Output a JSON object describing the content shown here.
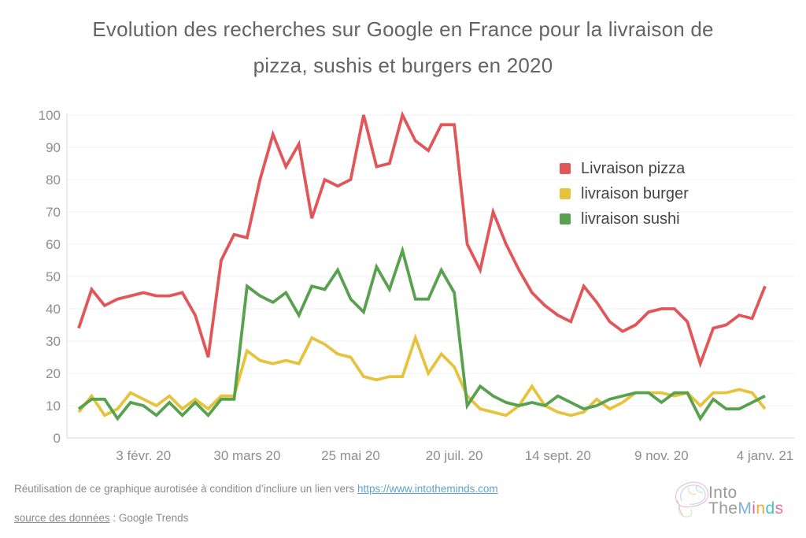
{
  "title": {
    "line1": "Evolution des recherches sur Google en France pour la livraison de",
    "line2": "pizza, sushis et burgers en 2020"
  },
  "legend": {
    "items": [
      {
        "label": "Livraison pizza",
        "color": "#e15759"
      },
      {
        "label": "livraison burger",
        "color": "#e6c33d"
      },
      {
        "label": "livraison sushi",
        "color": "#58a14e"
      }
    ]
  },
  "chart_data": {
    "type": "line",
    "title": "Evolution des recherches sur Google en France pour la livraison de pizza, sushis et burgers en 2020",
    "xlabel": "",
    "ylabel": "",
    "ylim": [
      0,
      100
    ],
    "y_ticks": [
      0,
      10,
      20,
      30,
      40,
      50,
      60,
      70,
      80,
      90,
      100
    ],
    "grid": "horizontal",
    "legend_position": "upper-right",
    "n_points": 54,
    "x_tick_labels": [
      "3 févr. 20",
      "30 mars 20",
      "25 mai 20",
      "20 juil. 20",
      "14 sept. 20",
      "9 nov. 20",
      "4 janv. 21"
    ],
    "x_tick_indices": [
      5,
      13,
      21,
      29,
      37,
      45,
      53
    ],
    "series": [
      {
        "name": "Livraison pizza",
        "color": "#e15759",
        "values": [
          34,
          46,
          41,
          43,
          44,
          45,
          44,
          44,
          45,
          38,
          25,
          55,
          63,
          62,
          80,
          94,
          84,
          91,
          68,
          80,
          78,
          80,
          100,
          84,
          85,
          100,
          92,
          89,
          97,
          97,
          60,
          52,
          70,
          60,
          52,
          45,
          41,
          38,
          36,
          47,
          42,
          36,
          33,
          35,
          39,
          40,
          40,
          36,
          23,
          34,
          35,
          38,
          37,
          47
        ]
      },
      {
        "name": "livraison burger",
        "color": "#e6c33d",
        "values": [
          8,
          13,
          7,
          9,
          14,
          12,
          10,
          13,
          9,
          12,
          9,
          13,
          13,
          27,
          24,
          23,
          24,
          23,
          31,
          29,
          26,
          25,
          19,
          18,
          19,
          19,
          31,
          20,
          26,
          22,
          13,
          9,
          8,
          7,
          10,
          16,
          10,
          8,
          7,
          8,
          12,
          9,
          11,
          14,
          14,
          14,
          13,
          14,
          10,
          14,
          14,
          15,
          14,
          9
        ]
      },
      {
        "name": "livraison sushi",
        "color": "#58a14e",
        "values": [
          9,
          12,
          12,
          6,
          11,
          10,
          7,
          11,
          7,
          11,
          7,
          12,
          12,
          47,
          44,
          42,
          45,
          38,
          47,
          46,
          52,
          43,
          39,
          53,
          46,
          58,
          43,
          43,
          52,
          45,
          10,
          16,
          13,
          11,
          10,
          11,
          10,
          13,
          11,
          9,
          10,
          12,
          13,
          14,
          14,
          11,
          14,
          14,
          6,
          12,
          9,
          9,
          11,
          13
        ]
      }
    ]
  },
  "footer": {
    "reuse_prefix": "Réutilisation de ce graphique aurotisée à condition d’incliure un lien vers ",
    "reuse_link": "https://www.intotheminds.com",
    "source_link_text": "source des données",
    "source_suffix": " : Google Trends"
  },
  "logo": {
    "into": "Into",
    "the": "The",
    "minds_letters": [
      {
        "ch": "M",
        "color": "#7fb2da"
      },
      {
        "ch": "i",
        "color": "#e7679e"
      },
      {
        "ch": "n",
        "color": "#f2a73b"
      },
      {
        "ch": "d",
        "color": "#44c3c9"
      },
      {
        "ch": "s",
        "color": "#ee6e95"
      }
    ]
  },
  "colors": {
    "grid": "#efefef",
    "axis_line": "#dadada",
    "tick_label": "#8e8e8e",
    "title_text": "#646464",
    "legend_text": "#454545",
    "footer_text": "#8a8a8a",
    "link": "#5ea4c7",
    "logo_gray": "#9b9b9b"
  }
}
